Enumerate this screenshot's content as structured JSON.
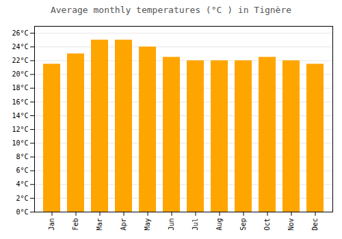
{
  "chart_data": {
    "type": "bar",
    "title": "Average monthly temperatures (°C ) in Tignère",
    "categories": [
      "Jan",
      "Feb",
      "Mar",
      "Apr",
      "May",
      "Jun",
      "Jul",
      "Aug",
      "Sep",
      "Oct",
      "Nov",
      "Dec"
    ],
    "values": [
      21.5,
      23.0,
      25.0,
      25.0,
      24.0,
      22.5,
      22.0,
      22.0,
      22.0,
      22.5,
      22.0,
      21.5
    ],
    "color": "#FFA500",
    "ylim": [
      0,
      27
    ],
    "yticks": [
      {
        "value": 0,
        "label": "0°C"
      },
      {
        "value": 2,
        "label": "2°C"
      },
      {
        "value": 4,
        "label": "4°C"
      },
      {
        "value": 6,
        "label": "6°C"
      },
      {
        "value": 8,
        "label": "8°C"
      },
      {
        "value": 10,
        "label": "10°C"
      },
      {
        "value": 12,
        "label": "12°C"
      },
      {
        "value": 14,
        "label": "14°C"
      },
      {
        "value": 16,
        "label": "16°C"
      },
      {
        "value": 18,
        "label": "18°C"
      },
      {
        "value": 20,
        "label": "20°C"
      },
      {
        "value": 22,
        "label": "22°C"
      },
      {
        "value": 24,
        "label": "24°C"
      },
      {
        "value": 26,
        "label": "26°C"
      }
    ],
    "grid": true
  }
}
